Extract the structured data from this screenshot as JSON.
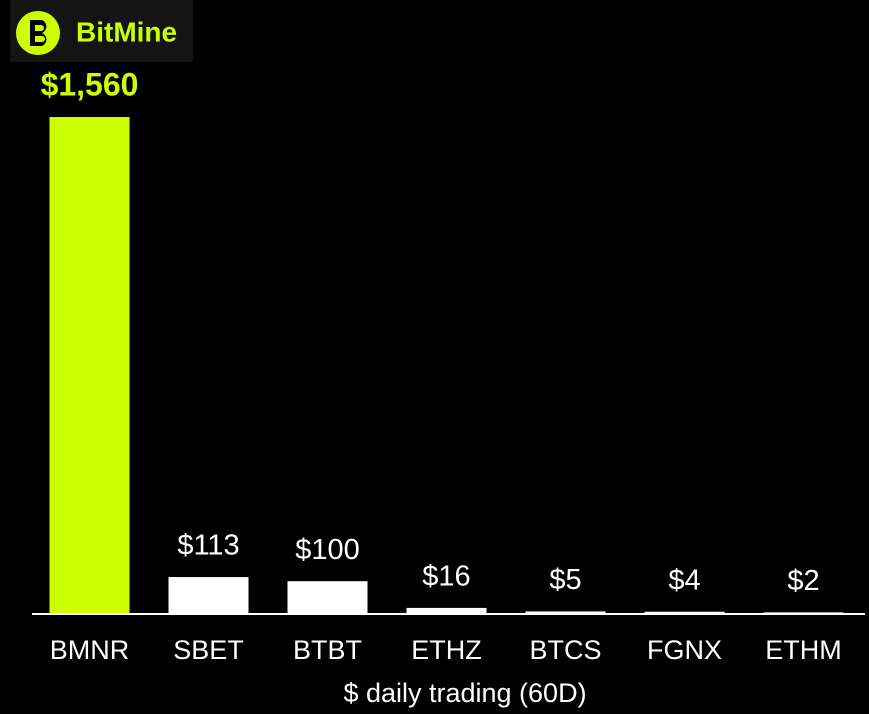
{
  "logo": "BitMine",
  "chart_data": {
    "type": "bar",
    "categories": [
      "BMNR",
      "SBET",
      "BTBT",
      "ETHZ",
      "BTCS",
      "FGNX",
      "ETHM"
    ],
    "values": [
      1560,
      113,
      100,
      16,
      5,
      4,
      2
    ],
    "value_labels": [
      "$1,560",
      "$113",
      "$100",
      "$16",
      "$5",
      "$4",
      "$2"
    ],
    "colors": [
      "#ccff00",
      "#ffffff",
      "#ffffff",
      "#ffffff",
      "#ffffff",
      "#ffffff",
      "#ffffff"
    ],
    "x_label": "$ daily trading (60D)"
  }
}
